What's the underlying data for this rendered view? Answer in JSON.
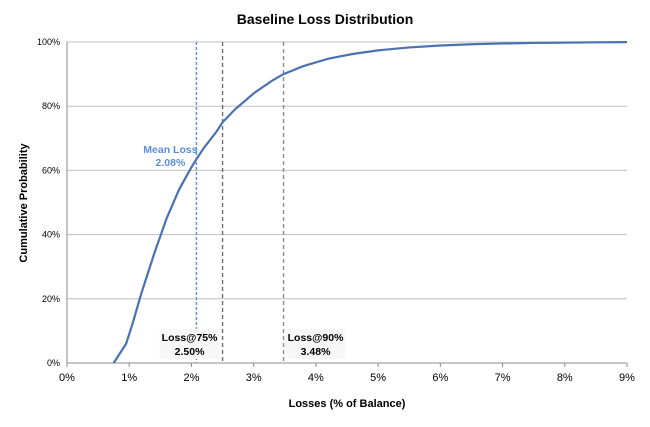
{
  "chart_data": {
    "type": "line",
    "title": "Baseline Loss Distribution",
    "xlabel": "Losses (% of Balance)",
    "ylabel": "Cumulative Probability",
    "xlim": [
      0,
      9
    ],
    "ylim": [
      0,
      100
    ],
    "x_ticks": [
      "0%",
      "1%",
      "2%",
      "3%",
      "4%",
      "5%",
      "6%",
      "7%",
      "8%",
      "9%"
    ],
    "y_ticks": [
      "0%",
      "20%",
      "40%",
      "60%",
      "80%",
      "100%"
    ],
    "grid": "horizontal",
    "series": [
      {
        "color": "#4a72b0",
        "x": [
          0.75,
          0.85,
          0.95,
          1.05,
          1.2,
          1.4,
          1.6,
          1.8,
          2.0,
          2.08,
          2.2,
          2.4,
          2.5,
          2.7,
          3.0,
          3.3,
          3.48,
          3.8,
          4.2,
          4.6,
          5.0,
          5.5,
          6.0,
          6.5,
          7.0,
          7.5,
          8.0,
          8.5,
          9.0
        ],
        "y": [
          0,
          3,
          6,
          12,
          22,
          34,
          45,
          54,
          61,
          63.5,
          67,
          72,
          75,
          79,
          84,
          88,
          90,
          92.5,
          94.8,
          96.3,
          97.4,
          98.3,
          98.9,
          99.3,
          99.55,
          99.7,
          99.8,
          99.9,
          99.95
        ]
      }
    ],
    "markers": [
      {
        "x": 2.08,
        "label_line1": "Mean Loss",
        "label_line2": "2.08%",
        "color": "#5b8ed6",
        "dash": "3,2"
      },
      {
        "x": 2.5,
        "label_line1": "Loss@75%",
        "label_line2": "2.50%",
        "color": "#6d6d6d",
        "dash": "4,3"
      },
      {
        "x": 3.48,
        "label_line1": "Loss@90%",
        "label_line2": "3.48%",
        "color": "#8c8c8c",
        "dash": "4,3"
      }
    ]
  }
}
